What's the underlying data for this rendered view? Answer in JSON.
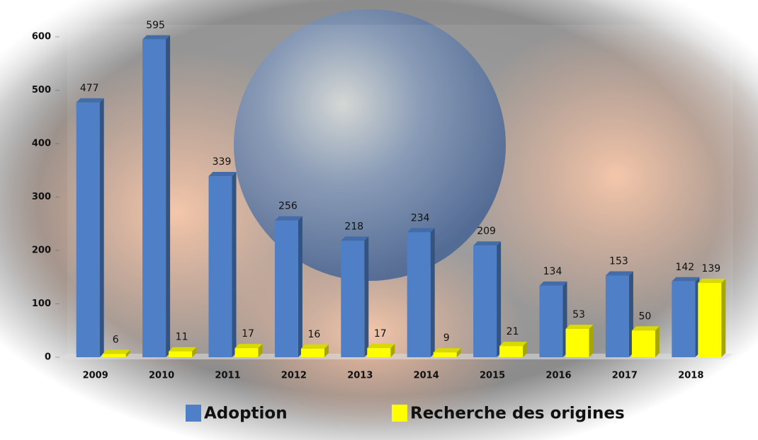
{
  "chart_data": {
    "type": "bar",
    "categories": [
      "2009",
      "2010",
      "2011",
      "2012",
      "2013",
      "2014",
      "2015",
      "2016",
      "2017",
      "2018"
    ],
    "series": [
      {
        "name": "Adoption",
        "color": "#4f7fc6",
        "values": [
          477,
          595,
          339,
          256,
          218,
          234,
          209,
          134,
          153,
          142
        ]
      },
      {
        "name": "Recherche des origines",
        "color": "#ffff00",
        "values": [
          6,
          11,
          17,
          16,
          17,
          9,
          21,
          53,
          50,
          139
        ]
      }
    ],
    "ylim": [
      0,
      600
    ],
    "yticks": [
      0,
      100,
      200,
      300,
      400,
      500,
      600
    ],
    "grid": false,
    "legend": "bottom"
  }
}
